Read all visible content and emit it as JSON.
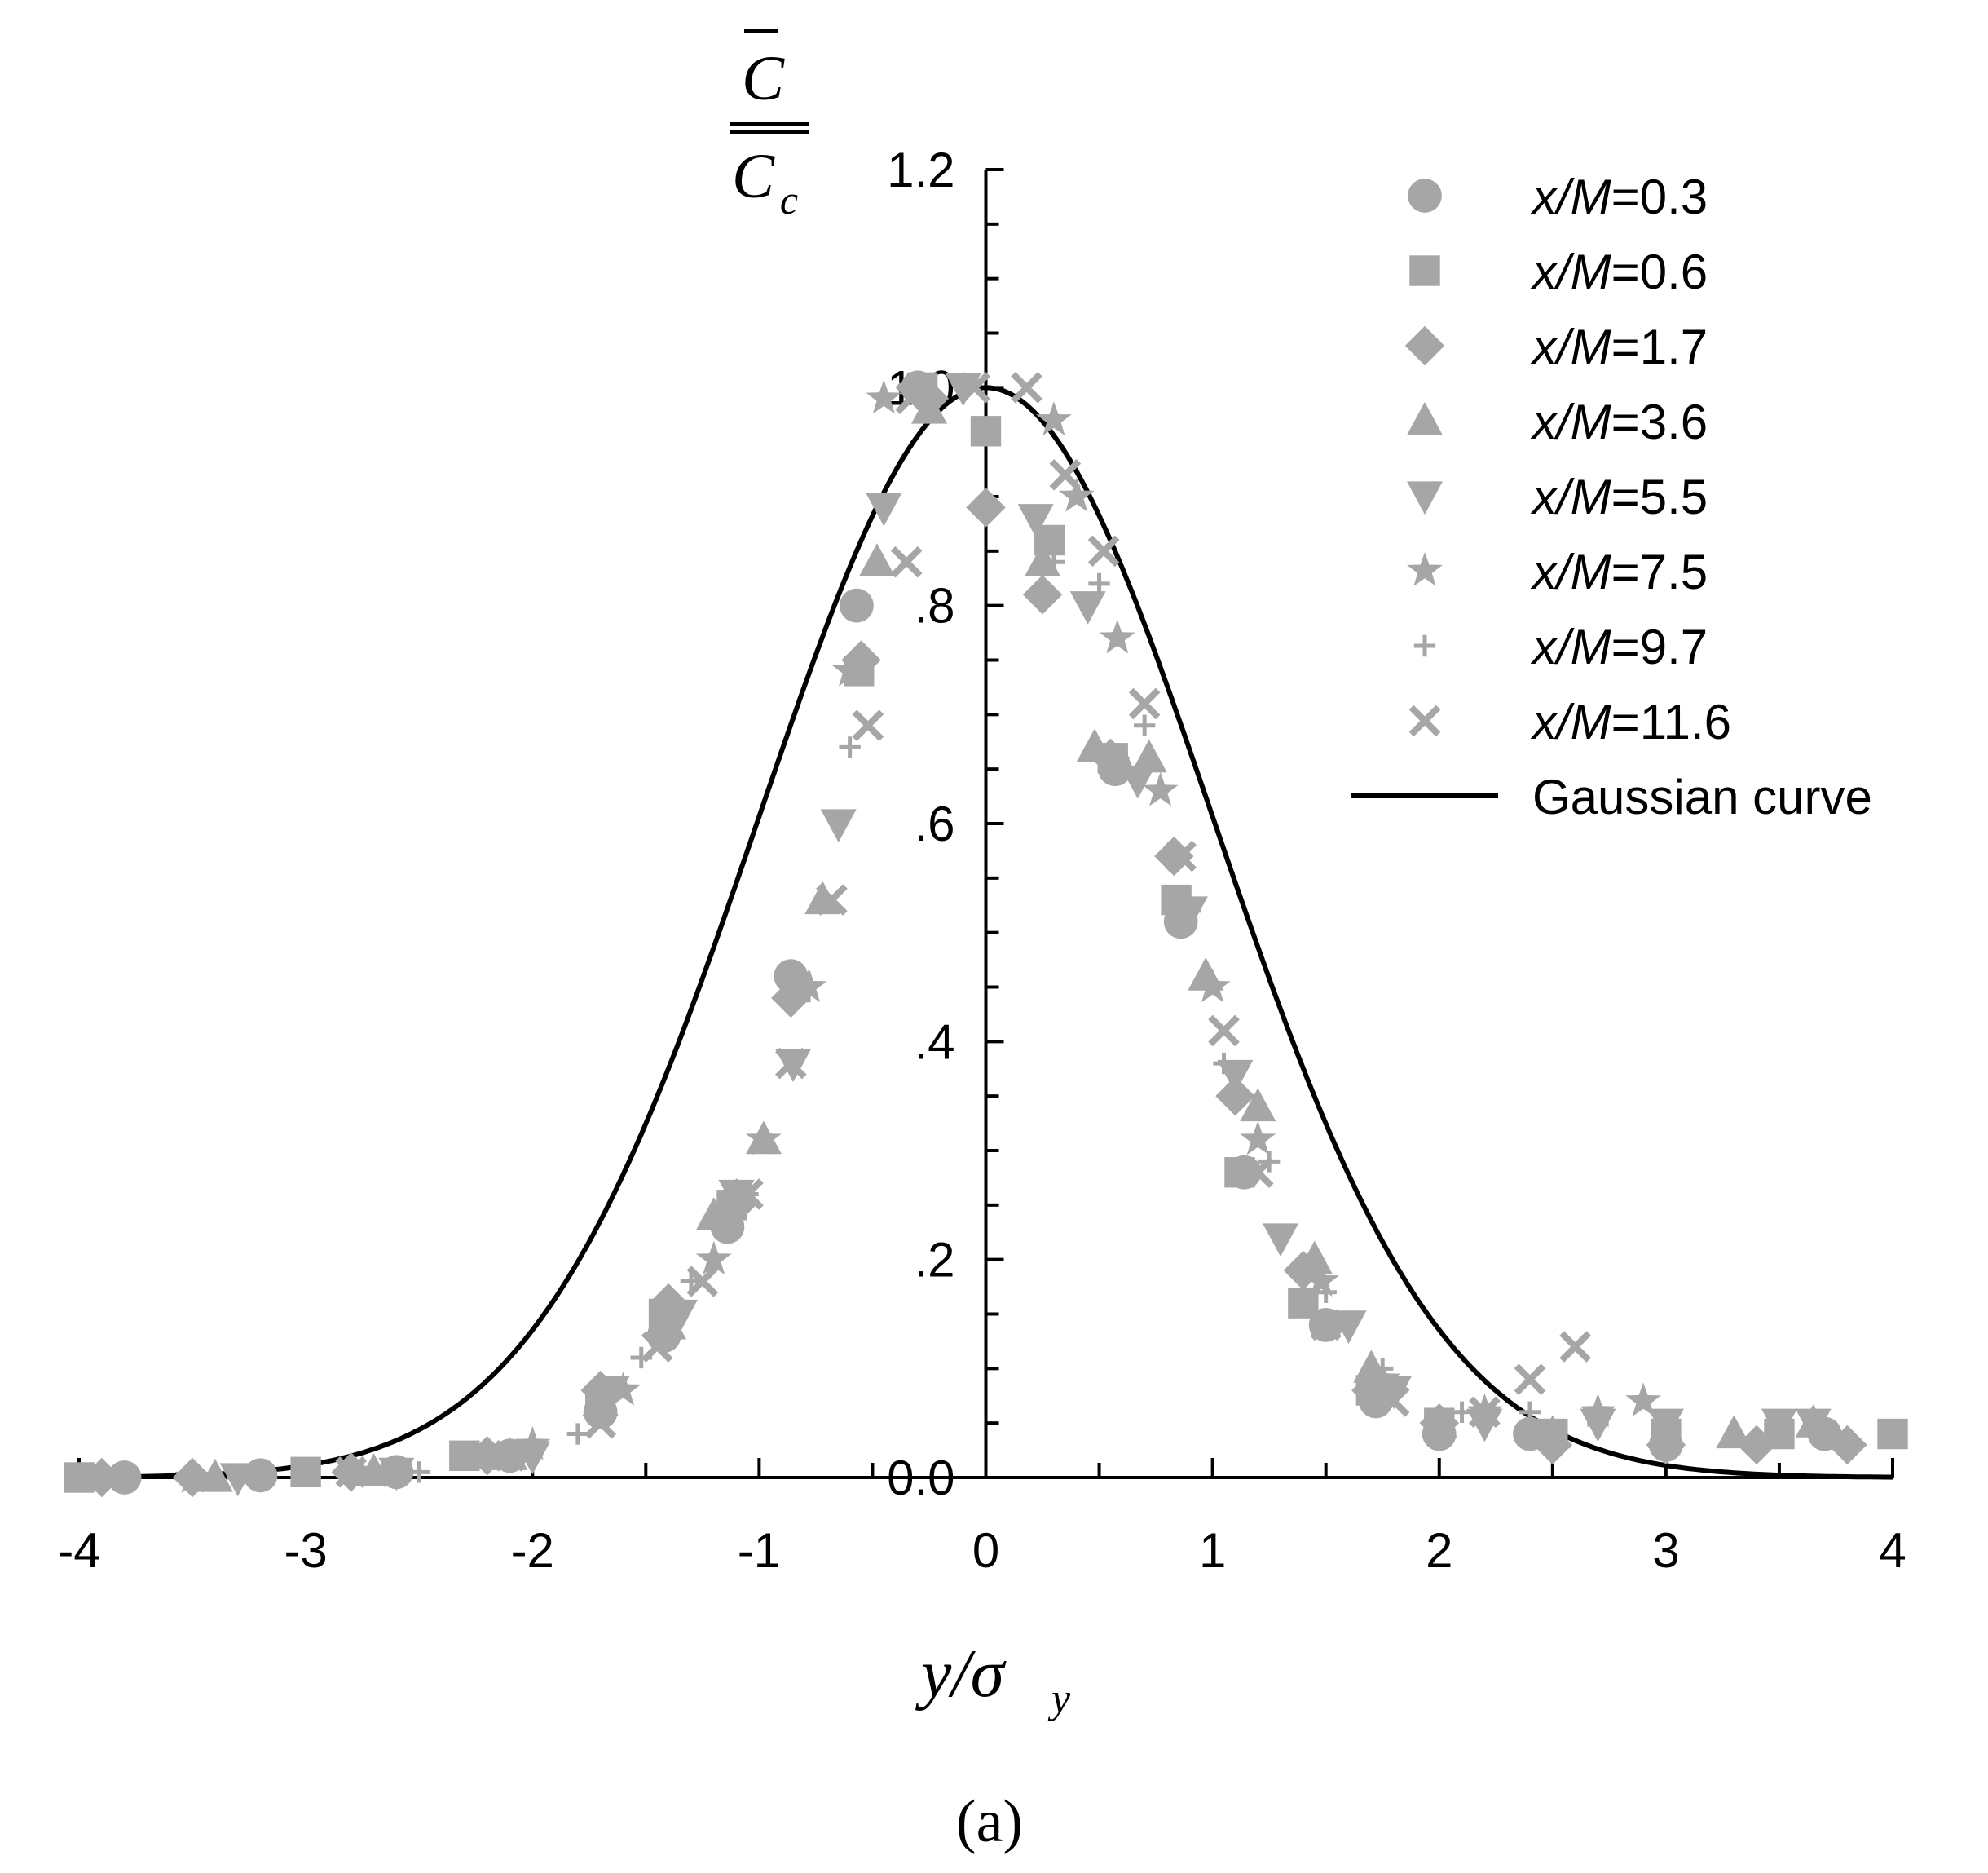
{
  "chart_data": {
    "type": "scatter",
    "caption": "(a)",
    "xlabel": {
      "main": "y/σ",
      "sub": "y"
    },
    "ylabel": {
      "numerator": "C",
      "denominator": "C",
      "denominator_sub": "c"
    },
    "xlim": [
      -4,
      4
    ],
    "ylim": [
      0,
      1.2
    ],
    "x_ticks": [
      -4,
      -3,
      -2,
      -1,
      0,
      1,
      2,
      3,
      4
    ],
    "x_tick_labels": [
      "-4",
      "-3",
      "-2",
      "-1",
      "0",
      "1",
      "2",
      "3",
      "4"
    ],
    "y_ticks": [
      0,
      0.2,
      0.4,
      0.6,
      0.8,
      1.0,
      1.2
    ],
    "y_tick_labels": [
      "0.0",
      ".2",
      ".4",
      ".6",
      ".8",
      "1.0",
      "1.2"
    ],
    "marker_color": "#a6a6a6",
    "curve_color": "#000000",
    "legend_position": "top-right",
    "series": [
      {
        "name_italic": "x/M",
        "name_value": "=0.3",
        "marker": "circle",
        "points": [
          [
            -0.3,
            1.0
          ],
          [
            -0.57,
            0.8
          ],
          [
            -0.86,
            0.46
          ],
          [
            -1.14,
            0.23
          ],
          [
            -1.42,
            0.13
          ],
          [
            -1.7,
            0.06
          ],
          [
            -2.1,
            0.02
          ],
          [
            -2.6,
            0.005
          ],
          [
            -3.2,
            0.002
          ],
          [
            -3.8,
            0.0
          ],
          [
            0.57,
            0.65
          ],
          [
            0.86,
            0.51
          ],
          [
            1.14,
            0.28
          ],
          [
            1.5,
            0.14
          ],
          [
            1.72,
            0.07
          ],
          [
            2.0,
            0.04
          ],
          [
            2.4,
            0.04
          ],
          [
            3.0,
            0.03
          ],
          [
            3.7,
            0.04
          ]
        ]
      },
      {
        "name_italic": "x/M",
        "name_value": "=0.6",
        "marker": "square",
        "points": [
          [
            -0.28,
            1.0
          ],
          [
            -0.56,
            0.74
          ],
          [
            -0.84,
            0.45
          ],
          [
            -1.12,
            0.25
          ],
          [
            -1.42,
            0.15
          ],
          [
            -1.7,
            0.07
          ],
          [
            -2.3,
            0.02
          ],
          [
            -3.0,
            0.005
          ],
          [
            -4.0,
            0.0
          ],
          [
            0.0,
            0.96
          ],
          [
            0.28,
            0.86
          ],
          [
            0.56,
            0.66
          ],
          [
            0.84,
            0.53
          ],
          [
            1.12,
            0.28
          ],
          [
            1.4,
            0.16
          ],
          [
            1.7,
            0.08
          ],
          [
            2.0,
            0.05
          ],
          [
            2.5,
            0.04
          ],
          [
            3.0,
            0.04
          ],
          [
            3.5,
            0.04
          ],
          [
            4.0,
            0.04
          ]
        ]
      },
      {
        "name_italic": "x/M",
        "name_value": "=1.7",
        "marker": "diamond",
        "points": [
          [
            -0.25,
            0.99
          ],
          [
            -0.55,
            0.75
          ],
          [
            -0.86,
            0.44
          ],
          [
            -1.1,
            0.25
          ],
          [
            -1.4,
            0.16
          ],
          [
            -1.7,
            0.08
          ],
          [
            -2.2,
            0.02
          ],
          [
            -2.8,
            0.005
          ],
          [
            -3.5,
            0.0
          ],
          [
            -3.9,
            0.0
          ],
          [
            0.0,
            0.89
          ],
          [
            0.25,
            0.81
          ],
          [
            0.55,
            0.66
          ],
          [
            0.83,
            0.57
          ],
          [
            1.1,
            0.35
          ],
          [
            1.4,
            0.19
          ],
          [
            1.7,
            0.08
          ],
          [
            2.0,
            0.05
          ],
          [
            2.5,
            0.03
          ],
          [
            3.0,
            0.03
          ],
          [
            3.4,
            0.03
          ],
          [
            3.8,
            0.03
          ]
        ]
      },
      {
        "name_italic": "x/M",
        "name_value": "=3.6",
        "marker": "triangle-up",
        "points": [
          [
            -0.25,
            0.98
          ],
          [
            -0.48,
            0.84
          ],
          [
            -0.72,
            0.53
          ],
          [
            -0.98,
            0.31
          ],
          [
            -1.2,
            0.24
          ],
          [
            -1.4,
            0.14
          ],
          [
            -1.7,
            0.07
          ],
          [
            -2.1,
            0.02
          ],
          [
            -2.7,
            0.005
          ],
          [
            -3.4,
            0.0
          ],
          [
            0.25,
            0.84
          ],
          [
            0.48,
            0.67
          ],
          [
            0.72,
            0.66
          ],
          [
            0.97,
            0.46
          ],
          [
            1.2,
            0.34
          ],
          [
            1.45,
            0.2
          ],
          [
            1.7,
            0.1
          ],
          [
            2.0,
            0.05
          ],
          [
            2.5,
            0.04
          ],
          [
            3.0,
            0.04
          ],
          [
            3.3,
            0.04
          ],
          [
            3.65,
            0.05
          ]
        ]
      },
      {
        "name_italic": "x/M",
        "name_value": "=5.5",
        "marker": "triangle-down",
        "points": [
          [
            -0.1,
            1.0
          ],
          [
            -0.45,
            0.89
          ],
          [
            -0.65,
            0.6
          ],
          [
            -0.85,
            0.38
          ],
          [
            -1.1,
            0.26
          ],
          [
            -1.35,
            0.15
          ],
          [
            -1.65,
            0.08
          ],
          [
            -2.0,
            0.02
          ],
          [
            -2.6,
            0.005
          ],
          [
            -3.3,
            0.0
          ],
          [
            0.22,
            0.88
          ],
          [
            0.45,
            0.8
          ],
          [
            0.67,
            0.64
          ],
          [
            0.9,
            0.52
          ],
          [
            1.1,
            0.37
          ],
          [
            1.3,
            0.22
          ],
          [
            1.6,
            0.14
          ],
          [
            1.8,
            0.08
          ],
          [
            2.2,
            0.05
          ],
          [
            2.7,
            0.05
          ],
          [
            3.0,
            0.05
          ],
          [
            3.5,
            0.05
          ],
          [
            3.65,
            0.05
          ]
        ]
      },
      {
        "name_italic": "x/M",
        "name_value": "=7.5",
        "marker": "star",
        "points": [
          [
            -0.45,
            0.99
          ],
          [
            -0.6,
            0.74
          ],
          [
            -0.78,
            0.45
          ],
          [
            -0.98,
            0.31
          ],
          [
            -1.2,
            0.2
          ],
          [
            -1.4,
            0.15
          ],
          [
            -1.6,
            0.08
          ],
          [
            -2.0,
            0.03
          ],
          [
            -2.7,
            0.005
          ],
          [
            -3.5,
            0.0
          ],
          [
            0.3,
            0.97
          ],
          [
            0.4,
            0.9
          ],
          [
            0.58,
            0.77
          ],
          [
            0.77,
            0.63
          ],
          [
            1.0,
            0.45
          ],
          [
            1.2,
            0.31
          ],
          [
            1.48,
            0.18
          ],
          [
            1.75,
            0.09
          ],
          [
            2.2,
            0.06
          ],
          [
            2.7,
            0.06
          ],
          [
            2.9,
            0.07
          ]
        ]
      },
      {
        "name_italic": "x/M",
        "name_value": "=9.7",
        "marker": "plus",
        "points": [
          [
            -0.6,
            0.67
          ],
          [
            -0.82,
            0.45
          ],
          [
            -1.05,
            0.26
          ],
          [
            -1.3,
            0.18
          ],
          [
            -1.52,
            0.11
          ],
          [
            -1.8,
            0.04
          ],
          [
            -2.5,
            0.005
          ],
          [
            -3.3,
            0.0
          ],
          [
            0.3,
            0.84
          ],
          [
            0.5,
            0.82
          ],
          [
            0.7,
            0.69
          ],
          [
            0.9,
            0.52
          ],
          [
            1.05,
            0.38
          ],
          [
            1.25,
            0.29
          ],
          [
            1.5,
            0.17
          ],
          [
            1.75,
            0.1
          ],
          [
            2.1,
            0.06
          ],
          [
            2.4,
            0.06
          ],
          [
            2.7,
            0.05
          ]
        ]
      },
      {
        "name_italic": "x/M",
        "name_value": "=11.6",
        "marker": "cross",
        "points": [
          [
            -0.33,
            0.99
          ],
          [
            -0.05,
            1.0
          ],
          [
            0.18,
            1.0
          ],
          [
            -0.35,
            0.84
          ],
          [
            -0.52,
            0.69
          ],
          [
            -0.68,
            0.53
          ],
          [
            -0.86,
            0.38
          ],
          [
            -1.05,
            0.26
          ],
          [
            -1.25,
            0.18
          ],
          [
            -1.45,
            0.12
          ],
          [
            -1.7,
            0.05
          ],
          [
            -2.1,
            0.02
          ],
          [
            -2.8,
            0.005
          ],
          [
            0.35,
            0.92
          ],
          [
            0.52,
            0.85
          ],
          [
            0.7,
            0.71
          ],
          [
            0.86,
            0.57
          ],
          [
            1.05,
            0.41
          ],
          [
            1.2,
            0.28
          ],
          [
            1.5,
            0.14
          ],
          [
            1.8,
            0.07
          ],
          [
            2.2,
            0.06
          ],
          [
            2.4,
            0.09
          ],
          [
            2.6,
            0.12
          ]
        ]
      }
    ],
    "curve": {
      "name": "Gaussian curve",
      "type": "line",
      "function": "exp(-x^2/2)"
    }
  }
}
